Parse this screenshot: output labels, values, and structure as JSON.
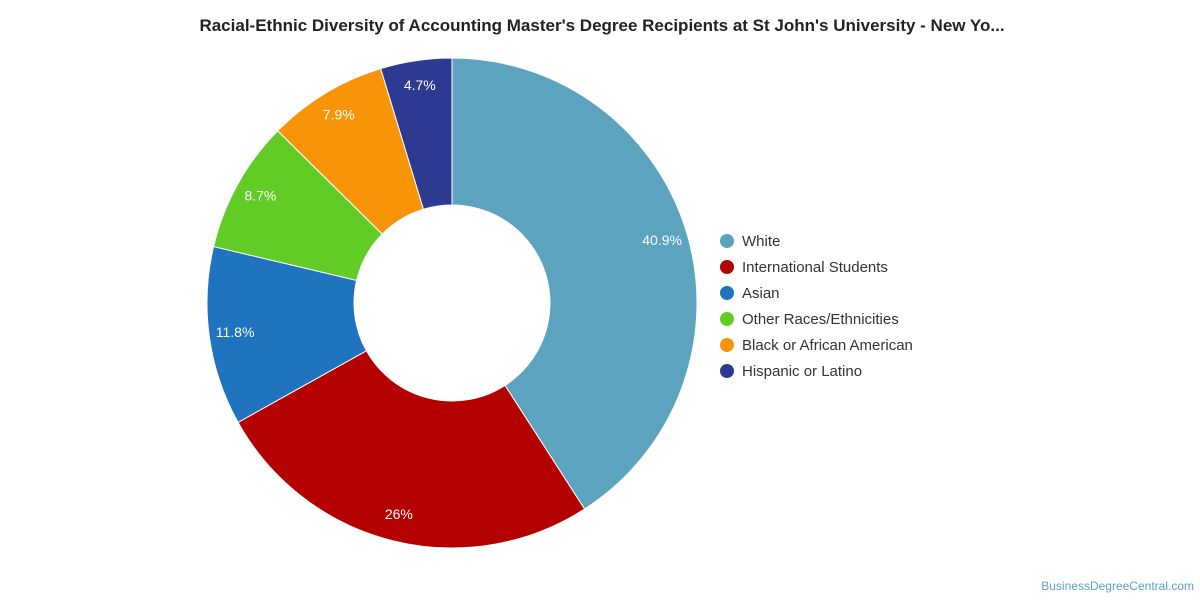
{
  "chart_data": {
    "type": "pie",
    "title": "Racial-Ethnic Diversity of Accounting Master's Degree Recipients at St John's University - New Yo...",
    "donut": true,
    "legend_position": "right",
    "start_angle_deg": 0,
    "direction": "clockwise",
    "slices": [
      {
        "label": "White",
        "value": 40.9,
        "value_label": "40.9%",
        "color": "#5ba3bf"
      },
      {
        "label": "International Students",
        "value": 26,
        "value_label": "26%",
        "color": "#b50000"
      },
      {
        "label": "Asian",
        "value": 11.8,
        "value_label": "11.8%",
        "color": "#1f74bd"
      },
      {
        "label": "Other Races/Ethnicities",
        "value": 8.7,
        "value_label": "8.7%",
        "color": "#61cc25"
      },
      {
        "label": "Black or African American",
        "value": 7.9,
        "value_label": "7.9%",
        "color": "#f89407"
      },
      {
        "label": "Hispanic or Latino",
        "value": 4.7,
        "value_label": "4.7%",
        "color": "#2e3a92"
      }
    ]
  },
  "footer": {
    "credit": "BusinessDegreeCentral.com"
  }
}
